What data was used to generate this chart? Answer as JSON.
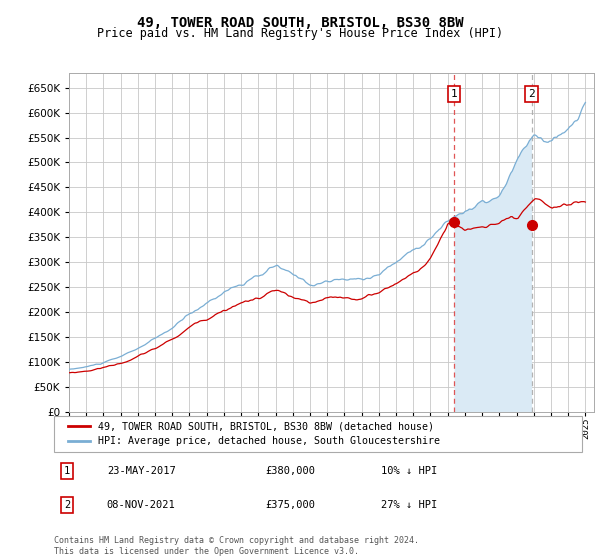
{
  "title": "49, TOWER ROAD SOUTH, BRISTOL, BS30 8BW",
  "subtitle": "Price paid vs. HM Land Registry's House Price Index (HPI)",
  "title_fontsize": 10,
  "subtitle_fontsize": 8.5,
  "yticks": [
    0,
    50000,
    100000,
    150000,
    200000,
    250000,
    300000,
    350000,
    400000,
    450000,
    500000,
    550000,
    600000,
    650000
  ],
  "ylim": [
    0,
    680000
  ],
  "background_color": "#ffffff",
  "grid_color": "#c8c8c8",
  "hpi_color": "#7aaed4",
  "price_color": "#cc0000",
  "hpi_fill_color": "#daeaf5",
  "sale1_year": 2017.375,
  "sale2_year": 2021.875,
  "sale1_price": 380000,
  "sale2_price": 375000,
  "legend_label1": "49, TOWER ROAD SOUTH, BRISTOL, BS30 8BW (detached house)",
  "legend_label2": "HPI: Average price, detached house, South Gloucestershire",
  "note1_date": "23-MAY-2017",
  "note1_price": "£380,000",
  "note1_pct": "10% ↓ HPI",
  "note2_date": "08-NOV-2021",
  "note2_price": "£375,000",
  "note2_pct": "27% ↓ HPI",
  "footer": "Contains HM Land Registry data © Crown copyright and database right 2024.\nThis data is licensed under the Open Government Licence v3.0."
}
